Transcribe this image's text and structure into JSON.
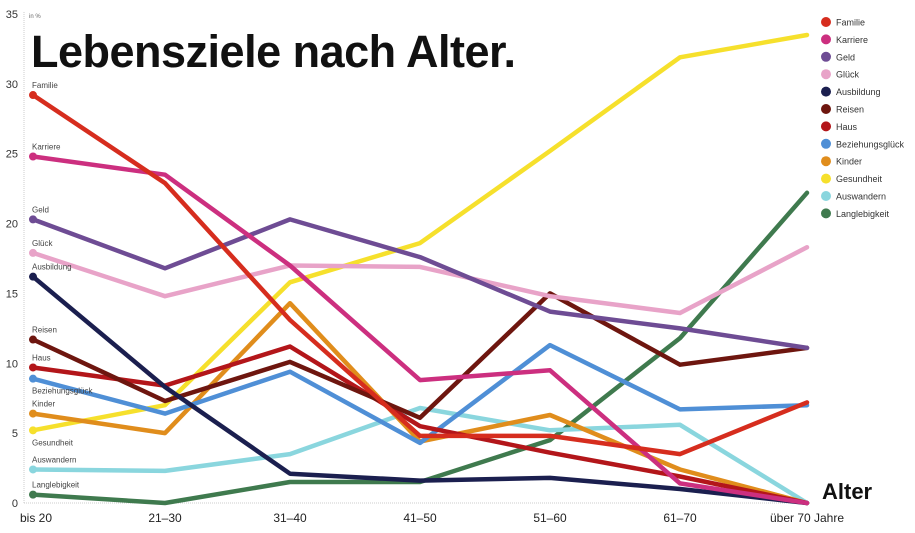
{
  "chart_data": {
    "type": "line",
    "title": "Lebensziele nach Alter.",
    "ylabel": "in %",
    "xlabel": "Alter",
    "ylim": [
      0,
      35
    ],
    "yticks": [
      0,
      5,
      10,
      15,
      20,
      25,
      30,
      35
    ],
    "grid": false,
    "legend_position": "right",
    "categories": [
      "bis 20",
      "21–30",
      "31–40",
      "41–50",
      "51–60",
      "61–70",
      "über 70 Jahre"
    ],
    "series": [
      {
        "name": "Familie",
        "color": "#d62d1e",
        "values": [
          29.2,
          22.9,
          13.1,
          4.8,
          4.8,
          3.5,
          7.2
        ]
      },
      {
        "name": "Karriere",
        "color": "#cc2f7f",
        "values": [
          24.8,
          23.5,
          17.0,
          8.8,
          9.5,
          1.4,
          0
        ]
      },
      {
        "name": "Geld",
        "color": "#6e4c94",
        "values": [
          20.3,
          16.8,
          20.3,
          17.6,
          13.7,
          12.5,
          11.1
        ]
      },
      {
        "name": "Glück",
        "color": "#e8a3c8",
        "values": [
          17.9,
          14.8,
          17.0,
          16.9,
          14.8,
          13.6,
          18.3
        ]
      },
      {
        "name": "Ausbildung",
        "color": "#1b1f4f",
        "values": [
          16.2,
          8.3,
          2.1,
          1.6,
          1.8,
          1.0,
          0
        ]
      },
      {
        "name": "Reisen",
        "color": "#6e160f",
        "values": [
          11.7,
          7.3,
          10.1,
          6.1,
          15.0,
          9.9,
          11.1
        ]
      },
      {
        "name": "Haus",
        "color": "#b3161a",
        "values": [
          9.7,
          8.4,
          11.2,
          5.5,
          3.6,
          1.9,
          0
        ]
      },
      {
        "name": "Beziehungsglück",
        "color": "#4f8fd6",
        "values": [
          8.9,
          6.4,
          9.4,
          4.3,
          11.3,
          6.7,
          7.0
        ]
      },
      {
        "name": "Kinder",
        "color": "#e08d1c",
        "values": [
          6.4,
          5.0,
          14.3,
          4.4,
          6.3,
          2.4,
          0
        ]
      },
      {
        "name": "Gesundheit",
        "color": "#f6e02c",
        "values": [
          5.2,
          7.0,
          15.8,
          18.6,
          25.2,
          31.9,
          33.5
        ]
      },
      {
        "name": "Auswandern",
        "color": "#8ad6de",
        "values": [
          2.4,
          2.3,
          3.5,
          6.8,
          5.2,
          5.6,
          0
        ]
      },
      {
        "name": "Langlebigkeit",
        "color": "#3f7a4e",
        "values": [
          0.6,
          0,
          1.5,
          1.5,
          4.5,
          11.8,
          22.2
        ]
      }
    ]
  }
}
